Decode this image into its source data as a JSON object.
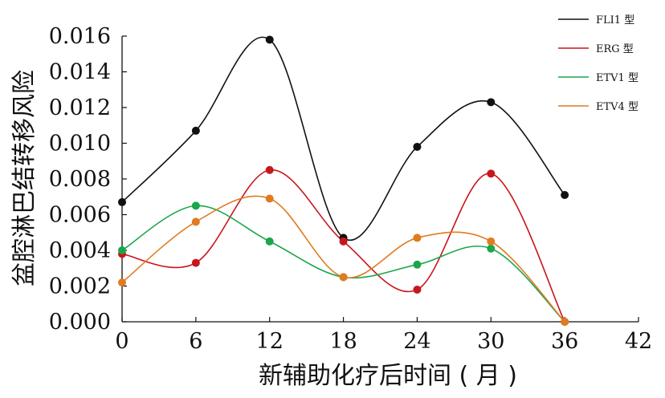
{
  "chart_data": {
    "type": "line",
    "title": "",
    "xlabel": "新辅助化疗后时间 ( 月 )",
    "ylabel": "盆腔淋巴结转移风险",
    "xlim": [
      0,
      42
    ],
    "ylim": [
      0,
      0.016
    ],
    "x_ticks": [
      "0",
      "6",
      "12",
      "18",
      "24",
      "30",
      "36",
      "42"
    ],
    "y_ticks": [
      "0.000",
      "0.002",
      "0.004",
      "0.006",
      "0.008",
      "0.010",
      "0.012",
      "0.014",
      "0.016"
    ],
    "legend_position": "top-right",
    "grid": false,
    "smooth": true,
    "series": [
      {
        "name": "FLI1 型",
        "color": "#111111",
        "x": [
          0,
          6,
          12,
          18,
          24,
          30,
          36
        ],
        "y": [
          0.0067,
          0.0107,
          0.0158,
          0.0047,
          0.0098,
          0.0123,
          0.0071
        ]
      },
      {
        "name": "ERG 型",
        "color": "#c8161d",
        "x": [
          0,
          6,
          12,
          18,
          24,
          30,
          36
        ],
        "y": [
          0.0038,
          0.0033,
          0.0085,
          0.0045,
          0.0018,
          0.0083,
          0.0
        ]
      },
      {
        "name": "ETV1 型",
        "color": "#1aa64a",
        "x": [
          0,
          6,
          12,
          18,
          24,
          30,
          36
        ],
        "y": [
          0.004,
          0.0065,
          0.0045,
          0.0025,
          0.0032,
          0.0041,
          0.0
        ]
      },
      {
        "name": "ETV4 型",
        "color": "#e07b20",
        "x": [
          0,
          6,
          12,
          18,
          24,
          30,
          36
        ],
        "y": [
          0.0022,
          0.0056,
          0.0069,
          0.0025,
          0.0047,
          0.0045,
          0.0
        ]
      }
    ]
  }
}
